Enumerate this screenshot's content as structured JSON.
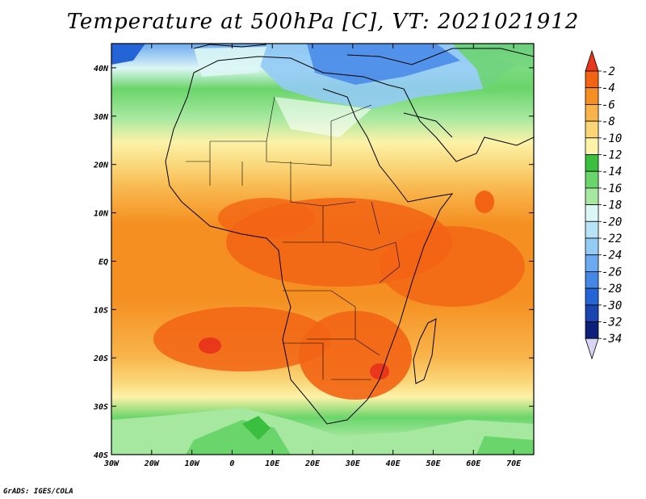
{
  "title": "Temperature at 500hPa [C], VT: 2021021912",
  "credit": "GrADS: IGES/COLA",
  "map": {
    "lon_range": [
      -30,
      75
    ],
    "lat_range": [
      -40,
      45
    ],
    "x_ticks": [
      "30W",
      "20W",
      "10W",
      "0",
      "10E",
      "20E",
      "30E",
      "40E",
      "50E",
      "60E",
      "70E"
    ],
    "y_ticks": [
      "40S",
      "30S",
      "20S",
      "10S",
      "EQ",
      "10N",
      "20N",
      "30N",
      "40N"
    ]
  },
  "colorbar": {
    "labels": [
      "-2",
      "-4",
      "-6",
      "-8",
      "-10",
      "-12",
      "-14",
      "-16",
      "-18",
      "-20",
      "-22",
      "-24",
      "-26",
      "-28",
      "-30",
      "-32",
      "-34"
    ],
    "colors": [
      "#e8371b",
      "#f26414",
      "#f58f21",
      "#f8b44a",
      "#fad577",
      "#fcf2a8",
      "#3bbf3f",
      "#6ad56a",
      "#a6e8a0",
      "#dcf6f5",
      "#b8e2f6",
      "#94cbf5",
      "#6caaf0",
      "#4587e7",
      "#2564d6",
      "#1a44b0",
      "#0c1f7a",
      "#d6d6f4"
    ]
  }
}
